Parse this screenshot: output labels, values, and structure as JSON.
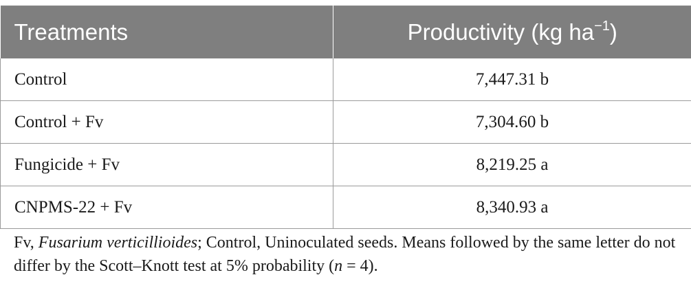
{
  "table": {
    "headers": {
      "treatments": "Treatments",
      "productivity": "Productivity (kg ha",
      "productivity_sup": "−1",
      "productivity_close": ")"
    },
    "rows": [
      {
        "treatment": "Control",
        "productivity": "7,447.31 b"
      },
      {
        "treatment": "Control + Fv",
        "productivity": "7,304.60 b"
      },
      {
        "treatment": "Fungicide + Fv",
        "productivity": "8,219.25 a"
      },
      {
        "treatment": "CNPMS-22 + Fv",
        "productivity": "8,340.93 a"
      }
    ]
  },
  "footnote": {
    "part1": "Fv, ",
    "species": "Fusarium verticillioides",
    "part2": "; Control, Uninoculated seeds. Means followed by the same letter do not differ by the Scott–Knott test at 5% probability (",
    "n_symbol": "n",
    "part3": " = 4)."
  },
  "colors": {
    "header_bg": "#7f7f7f",
    "header_text": "#ffffff",
    "border": "#9a9a9a"
  }
}
